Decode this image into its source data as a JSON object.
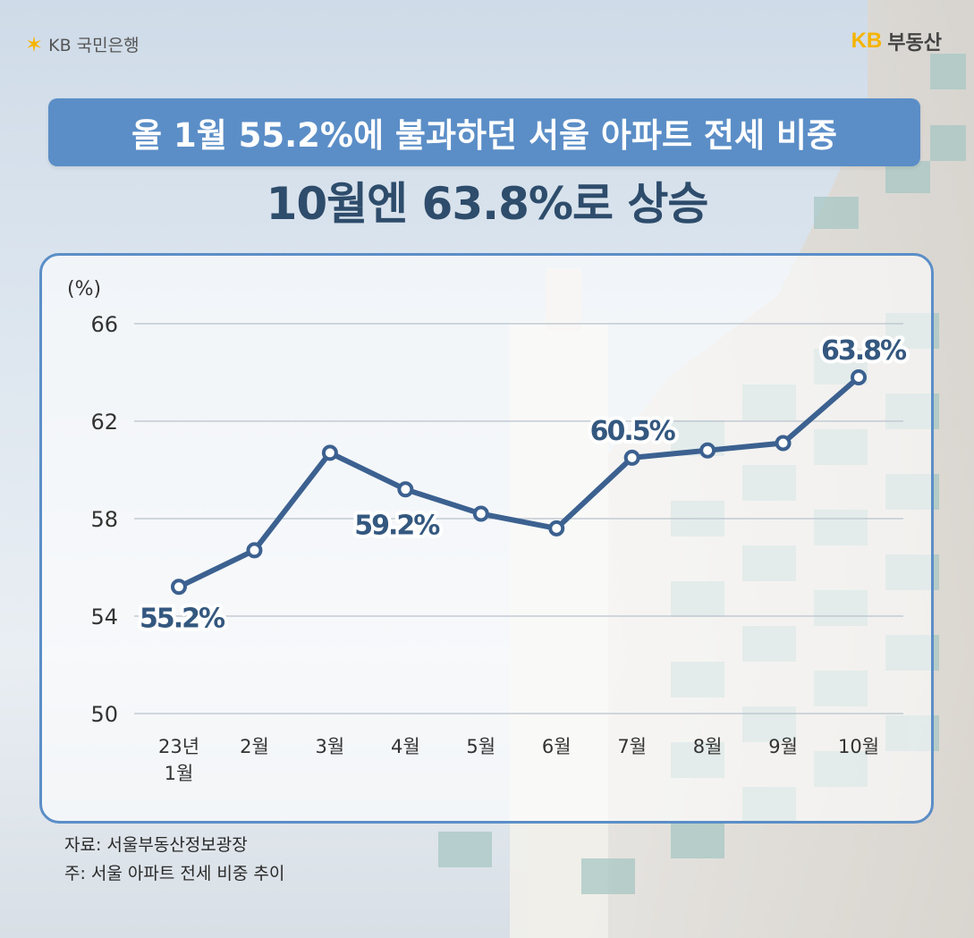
{
  "header": {
    "left_logo_text": "KB 국민은행",
    "right_logo_kb": "KB",
    "right_logo_text": "부동산",
    "headline": "올 1월 55.2%에 불과하던 서울 아파트 전세 비중",
    "subheadline": "10월엔 63.8%로 상승"
  },
  "chart_data": {
    "type": "line",
    "ylabel": "(%)",
    "ylim": [
      50,
      66
    ],
    "yticks": [
      "66",
      "62",
      "58",
      "54",
      "50"
    ],
    "categories": [
      [
        "23년",
        "1월"
      ],
      [
        "2월"
      ],
      [
        "3월"
      ],
      [
        "4월"
      ],
      [
        "5월"
      ],
      [
        "6월"
      ],
      [
        "7월"
      ],
      [
        "8월"
      ],
      [
        "9월"
      ],
      [
        "10월"
      ]
    ],
    "values": [
      55.2,
      56.7,
      60.7,
      59.2,
      58.2,
      57.6,
      60.5,
      60.8,
      61.1,
      63.8
    ],
    "data_labels": [
      {
        "index": 0,
        "text": "55.2%"
      },
      {
        "index": 3,
        "text": "59.2%"
      },
      {
        "index": 6,
        "text": "60.5%"
      },
      {
        "index": 9,
        "text": "63.8%"
      }
    ],
    "line_color": "#3c6190",
    "grid": true
  },
  "footer": {
    "source": "자료: 서울부동산정보광장",
    "note": "주: 서울 아파트 전세 비중 추이"
  }
}
